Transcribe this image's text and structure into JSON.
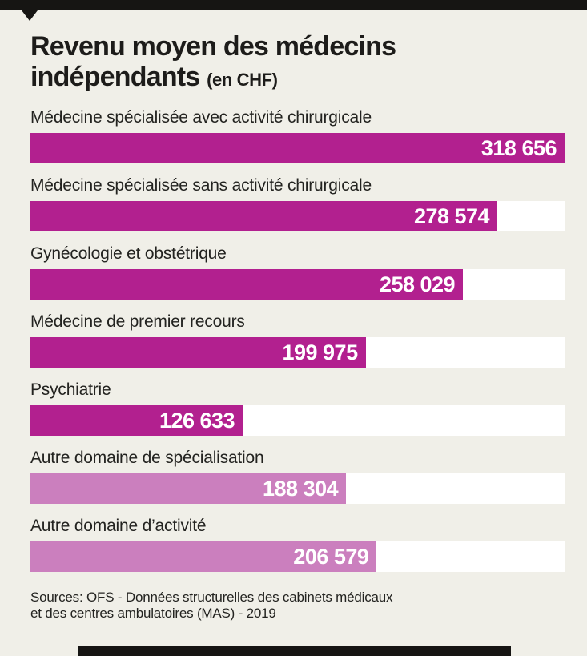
{
  "header": {
    "title_line1": "Revenu moyen des médecins",
    "title_line2": "indépendants",
    "title_suffix": "(en CHF)"
  },
  "chart_data": {
    "type": "bar",
    "orientation": "horizontal",
    "title": "Revenu moyen des médecins indépendants (en CHF)",
    "unit": "CHF",
    "categories": [
      "Médecine spécialisée avec activité chirurgicale",
      "Médecine spécialisée sans activité chirurgicale",
      "Gynécologie et obstétrique",
      "Médecine de premier recours",
      "Psychiatrie",
      "Autre domaine de spécialisation",
      "Autre domaine d’activité"
    ],
    "values": [
      318656,
      278574,
      258029,
      199975,
      126633,
      188304,
      206579
    ],
    "value_labels": [
      "318 656",
      "278 574",
      "258 029",
      "199 975",
      "126 633",
      "188 304",
      "206 579"
    ],
    "xlim": [
      0,
      318656
    ],
    "grid": false,
    "legend": false,
    "value_label_position": "inside-end",
    "colors": {
      "primary": "#b2208f",
      "secondary": "#cb7fbe",
      "track": "#ffffff",
      "background": "#f0efe8",
      "accent_bar": "#161513"
    }
  },
  "bars": [
    {
      "label": "Médecine spécialisée avec activité chirurgicale",
      "value": "318 656",
      "pct": 100,
      "variant": "primary"
    },
    {
      "label": "Médecine spécialisée sans activité chirurgicale",
      "value": "278 574",
      "pct": 87.42,
      "variant": "primary"
    },
    {
      "label": "Gynécologie et obstétrique",
      "value": "258 029",
      "pct": 80.97,
      "variant": "primary"
    },
    {
      "label": "Médecine de premier recours",
      "value": "199 975",
      "pct": 62.76,
      "variant": "primary"
    },
    {
      "label": "Psychiatrie",
      "value": "126 633",
      "pct": 39.74,
      "variant": "primary"
    },
    {
      "label": "Autre domaine de spécialisation",
      "value": "188 304",
      "pct": 59.09,
      "variant": "secondary"
    },
    {
      "label": "Autre domaine d’activité",
      "value": "206 579",
      "pct": 64.83,
      "variant": "secondary"
    }
  ],
  "source": {
    "line1": "Sources: OFS - Données structurelles des cabinets médicaux",
    "line2": "et des centres ambulatoires (MAS) - 2019"
  }
}
